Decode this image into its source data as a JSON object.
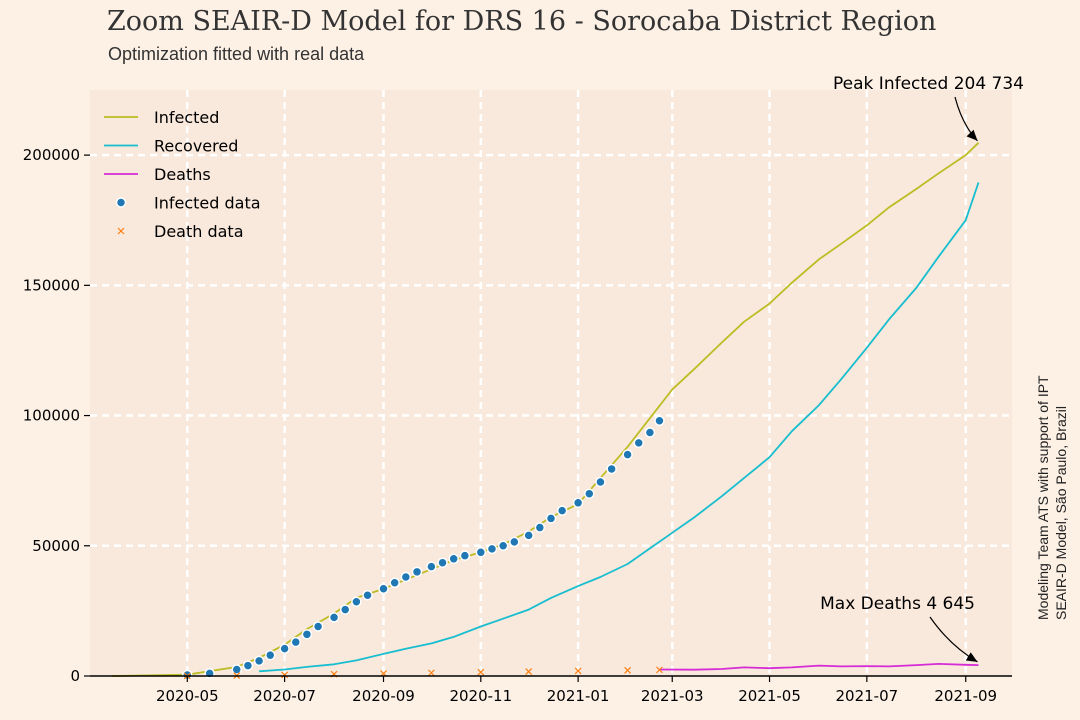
{
  "chart_data": {
    "type": "line",
    "title": "Zoom SEAIR-D Model for DRS 16 - Sorocaba District Region",
    "subtitle": "Optimization fitted with real data",
    "side_note": [
      "Modeling Team ATS with support of IPT",
      "SEAIR-D Model, São Paulo, Brazil"
    ],
    "xlabel": "",
    "ylabel": "",
    "x_range": [
      "2020-03-01",
      "2021-09-30"
    ],
    "ylim": [
      0,
      225000
    ],
    "grid": true,
    "legend_position": "top-left",
    "y_ticks": [
      0,
      50000,
      100000,
      150000,
      200000
    ],
    "x_ticks": [
      "2020-05",
      "2020-07",
      "2020-09",
      "2020-11",
      "2021-01",
      "2021-03",
      "2021-05",
      "2021-07",
      "2021-09"
    ],
    "series": [
      {
        "name": "Infected",
        "kind": "line",
        "color": "#bcbd22",
        "points": [
          [
            "2020-03-15",
            0
          ],
          [
            "2020-05-01",
            500
          ],
          [
            "2020-06-01",
            3500
          ],
          [
            "2020-06-15",
            7000
          ],
          [
            "2020-07-01",
            12000
          ],
          [
            "2020-07-15",
            18000
          ],
          [
            "2020-08-01",
            24000
          ],
          [
            "2020-08-15",
            30000
          ],
          [
            "2020-09-01",
            33500
          ],
          [
            "2020-09-15",
            37000
          ],
          [
            "2020-10-01",
            41000
          ],
          [
            "2020-10-15",
            44500
          ],
          [
            "2020-11-01",
            47500
          ],
          [
            "2020-11-15",
            50500
          ],
          [
            "2020-12-01",
            55500
          ],
          [
            "2020-12-15",
            61000
          ],
          [
            "2021-01-01",
            66000
          ],
          [
            "2021-01-15",
            76000
          ],
          [
            "2021-02-01",
            88000
          ],
          [
            "2021-02-15",
            99000
          ],
          [
            "2021-03-01",
            110000
          ],
          [
            "2021-03-15",
            118000
          ],
          [
            "2021-04-01",
            128000
          ],
          [
            "2021-04-15",
            136000
          ],
          [
            "2021-05-01",
            143000
          ],
          [
            "2021-05-15",
            151000
          ],
          [
            "2021-06-01",
            160000
          ],
          [
            "2021-06-15",
            166000
          ],
          [
            "2021-07-01",
            173000
          ],
          [
            "2021-07-15",
            180000
          ],
          [
            "2021-08-01",
            187000
          ],
          [
            "2021-08-15",
            193000
          ],
          [
            "2021-09-01",
            200000
          ],
          [
            "2021-09-09",
            204734
          ]
        ]
      },
      {
        "name": "Recovered",
        "kind": "line",
        "color": "#17becf",
        "points": [
          [
            "2020-06-15",
            1800
          ],
          [
            "2020-07-01",
            2500
          ],
          [
            "2020-07-15",
            3500
          ],
          [
            "2020-08-01",
            4500
          ],
          [
            "2020-08-15",
            6000
          ],
          [
            "2020-09-01",
            8500
          ],
          [
            "2020-09-15",
            10500
          ],
          [
            "2020-10-01",
            12500
          ],
          [
            "2020-10-15",
            15000
          ],
          [
            "2020-11-01",
            19000
          ],
          [
            "2020-11-15",
            22000
          ],
          [
            "2020-12-01",
            25500
          ],
          [
            "2020-12-15",
            30000
          ],
          [
            "2021-01-01",
            34500
          ],
          [
            "2021-01-15",
            38000
          ],
          [
            "2021-02-01",
            43000
          ],
          [
            "2021-02-15",
            49000
          ],
          [
            "2021-03-01",
            55000
          ],
          [
            "2021-03-15",
            61000
          ],
          [
            "2021-04-01",
            69000
          ],
          [
            "2021-04-15",
            76000
          ],
          [
            "2021-05-01",
            84000
          ],
          [
            "2021-05-15",
            94000
          ],
          [
            "2021-06-01",
            104000
          ],
          [
            "2021-06-15",
            114000
          ],
          [
            "2021-07-01",
            126000
          ],
          [
            "2021-07-15",
            137000
          ],
          [
            "2021-08-01",
            149000
          ],
          [
            "2021-08-15",
            161000
          ],
          [
            "2021-09-01",
            175000
          ],
          [
            "2021-09-09",
            189500
          ]
        ]
      },
      {
        "name": "Deaths",
        "kind": "line",
        "color": "#d62cd6",
        "points": [
          [
            "2021-02-21",
            2500
          ],
          [
            "2021-03-15",
            2400
          ],
          [
            "2021-04-01",
            2700
          ],
          [
            "2021-04-15",
            3300
          ],
          [
            "2021-05-01",
            3000
          ],
          [
            "2021-05-15",
            3300
          ],
          [
            "2021-06-01",
            4000
          ],
          [
            "2021-06-15",
            3700
          ],
          [
            "2021-07-01",
            3800
          ],
          [
            "2021-07-15",
            3700
          ],
          [
            "2021-08-01",
            4200
          ],
          [
            "2021-08-15",
            4645
          ],
          [
            "2021-09-01",
            4300
          ],
          [
            "2021-09-09",
            4200
          ]
        ]
      },
      {
        "name": "Infected data",
        "kind": "scatter",
        "color": "#1f77b4",
        "points": [
          [
            "2020-05-01",
            400
          ],
          [
            "2020-05-15",
            1000
          ],
          [
            "2020-06-01",
            2500
          ],
          [
            "2020-06-08",
            4000
          ],
          [
            "2020-06-15",
            5800
          ],
          [
            "2020-06-22",
            8000
          ],
          [
            "2020-07-01",
            10500
          ],
          [
            "2020-07-08",
            13000
          ],
          [
            "2020-07-15",
            16000
          ],
          [
            "2020-07-22",
            19000
          ],
          [
            "2020-08-01",
            22500
          ],
          [
            "2020-08-08",
            25500
          ],
          [
            "2020-08-15",
            28500
          ],
          [
            "2020-08-22",
            31000
          ],
          [
            "2020-09-01",
            33500
          ],
          [
            "2020-09-08",
            35800
          ],
          [
            "2020-09-15",
            38000
          ],
          [
            "2020-09-22",
            40000
          ],
          [
            "2020-10-01",
            42000
          ],
          [
            "2020-10-08",
            43500
          ],
          [
            "2020-10-15",
            45000
          ],
          [
            "2020-10-22",
            46200
          ],
          [
            "2020-11-01",
            47500
          ],
          [
            "2020-11-08",
            48800
          ],
          [
            "2020-11-15",
            50000
          ],
          [
            "2020-11-22",
            51500
          ],
          [
            "2020-12-01",
            54000
          ],
          [
            "2020-12-08",
            57000
          ],
          [
            "2020-12-15",
            60500
          ],
          [
            "2020-12-22",
            63500
          ],
          [
            "2021-01-01",
            66500
          ],
          [
            "2021-01-08",
            70000
          ],
          [
            "2021-01-15",
            74500
          ],
          [
            "2021-01-22",
            79500
          ],
          [
            "2021-02-01",
            85000
          ],
          [
            "2021-02-08",
            89500
          ],
          [
            "2021-02-15",
            93500
          ],
          [
            "2021-02-21",
            98000
          ]
        ]
      },
      {
        "name": "Death data",
        "kind": "scatter",
        "color": "#ff7f0e",
        "points": [
          [
            "2020-05-01",
            10
          ],
          [
            "2020-06-01",
            150
          ],
          [
            "2020-07-01",
            400
          ],
          [
            "2020-08-01",
            700
          ],
          [
            "2020-09-01",
            950
          ],
          [
            "2020-10-01",
            1200
          ],
          [
            "2020-11-01",
            1450
          ],
          [
            "2020-12-01",
            1700
          ],
          [
            "2021-01-01",
            1950
          ],
          [
            "2021-02-01",
            2200
          ],
          [
            "2021-02-21",
            2350
          ]
        ]
      }
    ],
    "annotations": [
      {
        "text": "Peak Infected 204 734",
        "x": "2021-09-09",
        "y": 204734
      },
      {
        "text": "Max Deaths 4 645",
        "x": "2021-09-09",
        "y": 4645
      }
    ]
  }
}
